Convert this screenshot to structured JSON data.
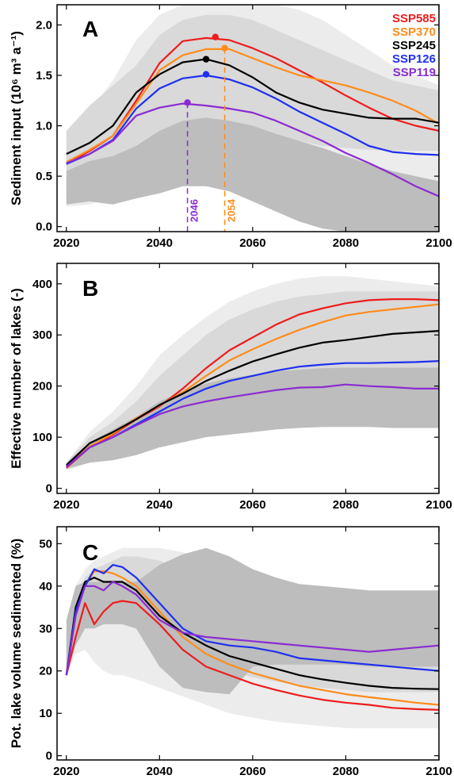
{
  "colors": {
    "SSP585": "#ee1c1c",
    "SSP370": "#ff8c1a",
    "SSP245": "#000000",
    "SSP126": "#1f2ff0",
    "SSP119": "#8a2bd2",
    "band_light": "#ececec",
    "band_mid": "#d9d9d9",
    "band_dark": "#bdbdbd"
  },
  "chart_data": [
    {
      "type": "line",
      "panel": "A",
      "ylabel": "Sediment input (10⁶ m³ a⁻¹)",
      "xlim": [
        2018,
        2100
      ],
      "ylim": [
        -0.05,
        2.2
      ],
      "xticks": [
        2020,
        2040,
        2060,
        2080,
        2100
      ],
      "yticks": [
        0.0,
        0.5,
        1.0,
        1.5,
        2.0
      ],
      "ytick_labels": [
        "0.0",
        "0.5",
        "1.0",
        "1.5",
        "2.0"
      ],
      "legend": [
        "SSP585",
        "SSP370",
        "SSP245",
        "SSP126",
        "SSP119"
      ],
      "legend_position": "top-right",
      "x": [
        2020,
        2025,
        2030,
        2035,
        2040,
        2045,
        2050,
        2055,
        2060,
        2065,
        2070,
        2075,
        2080,
        2085,
        2090,
        2095,
        2100
      ],
      "series": [
        {
          "name": "SSP585",
          "values": [
            0.62,
            0.75,
            0.9,
            1.25,
            1.62,
            1.84,
            1.87,
            1.85,
            1.77,
            1.67,
            1.55,
            1.43,
            1.3,
            1.18,
            1.07,
            1.0,
            0.95
          ]
        },
        {
          "name": "SSP370",
          "values": [
            0.64,
            0.76,
            0.9,
            1.22,
            1.55,
            1.7,
            1.76,
            1.76,
            1.67,
            1.58,
            1.5,
            1.45,
            1.4,
            1.33,
            1.25,
            1.15,
            1.02
          ]
        },
        {
          "name": "SSP245",
          "values": [
            0.72,
            0.83,
            1.0,
            1.33,
            1.51,
            1.63,
            1.66,
            1.6,
            1.48,
            1.33,
            1.23,
            1.16,
            1.12,
            1.08,
            1.07,
            1.07,
            1.03
          ]
        },
        {
          "name": "SSP126",
          "values": [
            0.62,
            0.72,
            0.86,
            1.17,
            1.37,
            1.47,
            1.5,
            1.46,
            1.38,
            1.27,
            1.14,
            1.03,
            0.92,
            0.8,
            0.74,
            0.72,
            0.71
          ]
        },
        {
          "name": "SSP119",
          "values": [
            0.63,
            0.72,
            0.85,
            1.1,
            1.18,
            1.22,
            1.2,
            1.17,
            1.13,
            1.05,
            0.95,
            0.85,
            0.73,
            0.63,
            0.52,
            0.4,
            0.3
          ]
        }
      ],
      "bands": [
        {
          "level": "light",
          "lower": [
            0.2,
            0.22,
            0.3,
            0.35,
            0.42,
            0.48,
            0.5,
            0.45,
            0.38,
            0.3,
            0.22,
            0.15,
            0.08,
            0.02,
            -0.04,
            -0.05,
            -0.05
          ],
          "upper": [
            0.92,
            1.15,
            1.45,
            1.85,
            2.1,
            2.2,
            2.2,
            2.2,
            2.2,
            2.2,
            2.15,
            2.05,
            1.9,
            1.75,
            1.6,
            1.5,
            1.4
          ]
        },
        {
          "level": "mid",
          "lower": [
            0.35,
            0.4,
            0.52,
            0.7,
            0.82,
            0.9,
            0.95,
            0.95,
            0.92,
            0.9,
            0.85,
            0.8,
            0.78,
            0.76,
            0.75,
            0.75,
            0.75
          ],
          "upper": [
            0.95,
            1.2,
            1.4,
            1.6,
            1.9,
            2.05,
            2.1,
            2.1,
            2.05,
            1.95,
            1.85,
            1.75,
            1.65,
            1.55,
            1.45,
            1.4,
            1.35
          ]
        },
        {
          "level": "dark",
          "lower": [
            0.22,
            0.25,
            0.22,
            0.28,
            0.33,
            0.4,
            0.4,
            0.35,
            0.25,
            0.15,
            0.05,
            -0.02,
            -0.05,
            -0.05,
            -0.05,
            -0.05,
            -0.05
          ],
          "upper": [
            0.55,
            0.65,
            0.7,
            0.8,
            0.95,
            1.05,
            1.08,
            1.05,
            1.0,
            0.92,
            0.85,
            0.78,
            0.7,
            0.62,
            0.55,
            0.5,
            0.45
          ]
        }
      ],
      "peaks": [
        {
          "series": "SSP585",
          "x": 2052,
          "y": 1.88
        },
        {
          "series": "SSP370",
          "x": 2054,
          "y": 1.77
        },
        {
          "series": "SSP245",
          "x": 2050,
          "y": 1.66
        },
        {
          "series": "SSP126",
          "x": 2050,
          "y": 1.51
        },
        {
          "series": "SSP119",
          "x": 2046,
          "y": 1.23
        }
      ],
      "annotations": [
        {
          "series": "SSP119",
          "x": 2046,
          "text": "2046"
        },
        {
          "series": "SSP370",
          "x": 2054,
          "text": "2054"
        }
      ]
    },
    {
      "type": "line",
      "panel": "B",
      "ylabel": "Effective number of lakes (-)",
      "xlim": [
        2018,
        2100
      ],
      "ylim": [
        -10,
        440
      ],
      "xticks": [
        2020,
        2040,
        2060,
        2080,
        2100
      ],
      "yticks": [
        0,
        100,
        200,
        300,
        400
      ],
      "ytick_labels": [
        "0",
        "100",
        "200",
        "300",
        "400"
      ],
      "x": [
        2020,
        2025,
        2030,
        2035,
        2040,
        2045,
        2050,
        2055,
        2060,
        2065,
        2070,
        2075,
        2080,
        2085,
        2090,
        2095,
        2100
      ],
      "series": [
        {
          "name": "SSP585",
          "values": [
            40,
            80,
            105,
            135,
            160,
            195,
            235,
            270,
            295,
            320,
            340,
            352,
            362,
            368,
            370,
            370,
            368
          ]
        },
        {
          "name": "SSP370",
          "values": [
            42,
            82,
            107,
            137,
            162,
            188,
            220,
            250,
            272,
            292,
            310,
            325,
            338,
            345,
            350,
            355,
            360
          ]
        },
        {
          "name": "SSP245",
          "values": [
            45,
            88,
            110,
            135,
            163,
            185,
            210,
            230,
            248,
            262,
            275,
            285,
            290,
            296,
            302,
            305,
            308
          ]
        },
        {
          "name": "SSP126",
          "values": [
            42,
            80,
            100,
            125,
            150,
            175,
            195,
            210,
            220,
            230,
            238,
            242,
            245,
            245,
            246,
            247,
            249
          ]
        },
        {
          "name": "SSP119",
          "values": [
            42,
            80,
            100,
            123,
            145,
            160,
            170,
            178,
            185,
            192,
            197,
            198,
            203,
            200,
            198,
            195,
            195
          ]
        }
      ],
      "bands": [
        {
          "level": "light",
          "lower": [
            35,
            50,
            75,
            100,
            125,
            145,
            160,
            170,
            180,
            185,
            188,
            190,
            190,
            190,
            190,
            190,
            190
          ],
          "upper": [
            50,
            110,
            150,
            200,
            260,
            300,
            335,
            365,
            385,
            400,
            410,
            415,
            415,
            410,
            405,
            400,
            395
          ]
        },
        {
          "level": "mid",
          "lower": [
            38,
            65,
            90,
            115,
            140,
            160,
            175,
            190,
            205,
            215,
            225,
            230,
            235,
            235,
            235,
            235,
            235
          ],
          "upper": [
            50,
            100,
            130,
            170,
            220,
            260,
            300,
            330,
            350,
            365,
            375,
            380,
            385,
            385,
            385,
            385,
            385
          ]
        },
        {
          "level": "dark",
          "lower": [
            38,
            50,
            55,
            65,
            80,
            90,
            100,
            105,
            110,
            115,
            118,
            120,
            120,
            120,
            118,
            118,
            118
          ],
          "upper": [
            50,
            90,
            115,
            140,
            170,
            190,
            205,
            215,
            222,
            228,
            232,
            235,
            236,
            236,
            236,
            236,
            236
          ]
        }
      ]
    },
    {
      "type": "line",
      "panel": "C",
      "ylabel": "Pot. lake volume sedimented (%)",
      "xlim": [
        2018,
        2100
      ],
      "ylim": [
        -1,
        54
      ],
      "xticks": [
        2020,
        2040,
        2060,
        2080,
        2100
      ],
      "yticks": [
        0,
        10,
        20,
        30,
        40,
        50
      ],
      "ytick_labels": [
        "0",
        "10",
        "20",
        "30",
        "40",
        "50"
      ],
      "x": [
        2020,
        2022,
        2024,
        2026,
        2028,
        2030,
        2032,
        2035,
        2040,
        2045,
        2050,
        2055,
        2060,
        2065,
        2070,
        2075,
        2080,
        2085,
        2090,
        2095,
        2100
      ],
      "series": [
        {
          "name": "SSP585",
          "values": [
            19,
            28,
            36,
            31,
            34,
            36,
            36.5,
            36,
            31,
            25,
            21,
            19,
            17,
            15.5,
            14.2,
            13.2,
            12.5,
            12,
            11.3,
            11,
            10.8
          ]
        },
        {
          "name": "SSP370",
          "values": [
            19,
            33,
            40,
            43.5,
            43.5,
            43,
            42,
            40,
            34,
            28,
            24,
            21.5,
            19.5,
            18,
            16.5,
            15.5,
            14.5,
            13.8,
            13.2,
            12.5,
            12
          ]
        },
        {
          "name": "SSP245",
          "values": [
            19,
            35,
            41,
            42,
            41,
            41,
            41,
            39,
            33,
            29,
            26,
            23.5,
            22,
            20.5,
            19,
            18,
            17.2,
            16.5,
            16,
            15.8,
            15.7
          ]
        },
        {
          "name": "SSP126",
          "values": [
            19,
            34,
            40,
            44,
            43,
            45,
            44.5,
            42,
            36,
            30,
            27,
            26,
            25.5,
            24.5,
            23,
            22.5,
            22,
            21.5,
            21,
            20.5,
            20
          ]
        },
        {
          "name": "SSP119",
          "values": [
            19,
            33,
            40,
            40,
            39,
            41,
            40,
            38,
            32,
            29,
            28,
            27.5,
            27,
            26.5,
            26,
            25.5,
            25,
            24.5,
            25,
            25.5,
            26
          ]
        }
      ],
      "bands": [
        {
          "level": "light",
          "lower": [
            19,
            24,
            25,
            22,
            20,
            19,
            19,
            18,
            16,
            14,
            12,
            10,
            9,
            8,
            7.5,
            7,
            6.5,
            6.5,
            6.5,
            6.5,
            6.5
          ],
          "upper": [
            30,
            40,
            44,
            46,
            47,
            48,
            49,
            49,
            49,
            48,
            46,
            44,
            42,
            40,
            38,
            37,
            36,
            35.5,
            35,
            35,
            35
          ]
        },
        {
          "level": "mid",
          "lower": [
            19,
            26,
            30,
            30,
            31,
            31,
            31,
            30,
            27,
            24,
            22,
            20,
            18.5,
            17.5,
            16.5,
            16,
            15.5,
            15,
            15,
            15,
            15
          ],
          "upper": [
            28,
            38,
            42,
            44,
            45,
            46,
            47,
            47,
            46,
            44,
            42,
            40,
            38,
            36,
            35,
            34,
            33,
            32.5,
            32,
            32,
            32
          ]
        },
        {
          "level": "dark",
          "lower": [
            19,
            26,
            30,
            30,
            31,
            31,
            31,
            30,
            21,
            16,
            15,
            14.5,
            21,
            21.5,
            21.5,
            21.5,
            21.5,
            21,
            21,
            21,
            21
          ],
          "upper": [
            32,
            40,
            41,
            41,
            41,
            41,
            41,
            41,
            45,
            47.5,
            49,
            47,
            44,
            42,
            40.5,
            40,
            39.5,
            39,
            39,
            39,
            39
          ]
        }
      ]
    }
  ]
}
